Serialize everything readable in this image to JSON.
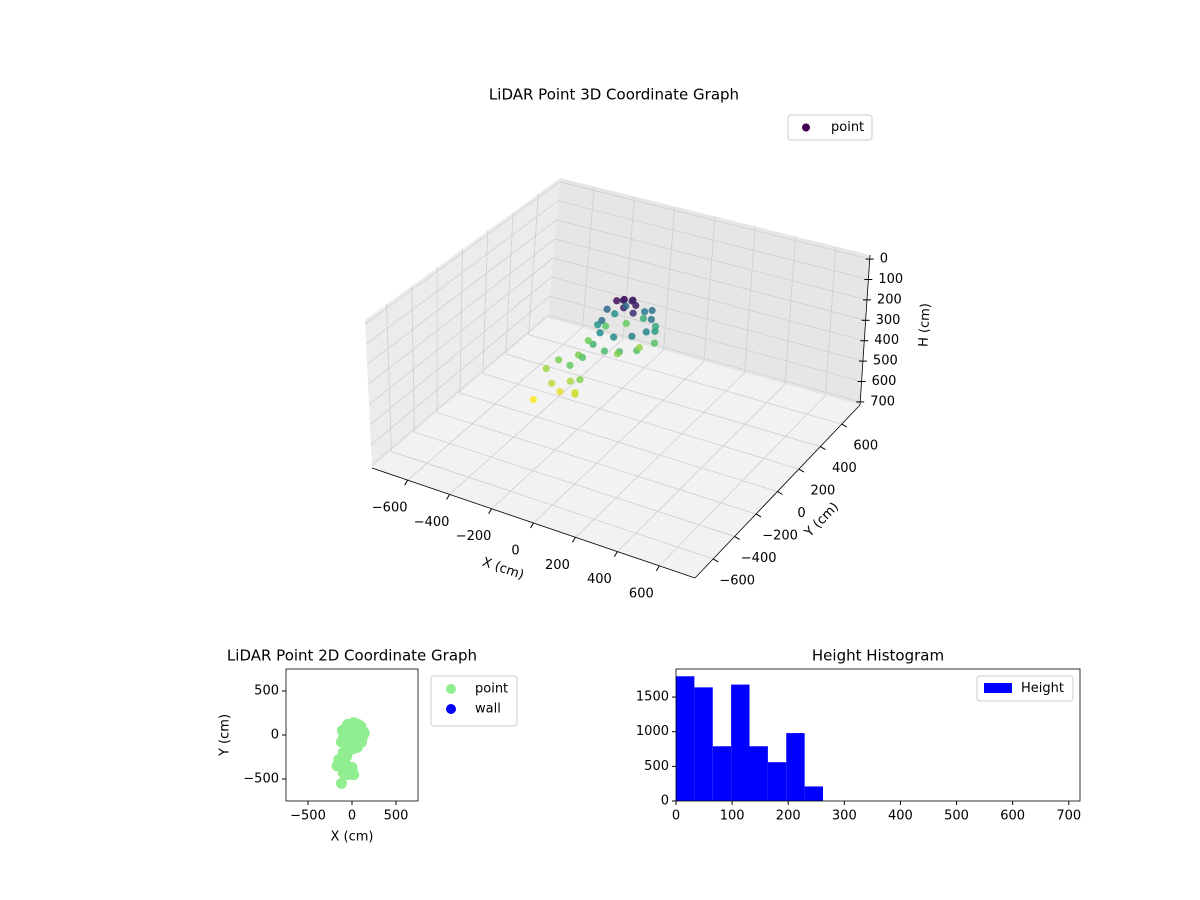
{
  "chart_data": [
    {
      "type": "scatter3d",
      "title": "LiDAR Point 3D Coordinate Graph",
      "xlabel": "X (cm)",
      "ylabel": "Y (cm)",
      "zlabel": "H (cm)",
      "colormap": "viridis",
      "legend": "upper right",
      "series": [
        {
          "name": "point",
          "x": [
            0,
            30,
            -30,
            20,
            50,
            -20,
            10,
            60,
            -90,
            -70,
            -40,
            40,
            100,
            120,
            90,
            20,
            -50,
            -100,
            130,
            70,
            -80,
            -60,
            0,
            60,
            110,
            140,
            100,
            20,
            -50,
            -110,
            -120,
            -100,
            -60,
            30,
            80,
            -150,
            -170,
            -80,
            0,
            -100,
            -50,
            20,
            -120,
            -40,
            10
          ],
          "y": [
            0,
            20,
            -10,
            -40,
            10,
            30,
            50,
            -30,
            20,
            -60,
            90,
            110,
            60,
            -20,
            -90,
            -120,
            -110,
            -40,
            40,
            120,
            70,
            -150,
            -160,
            -140,
            -80,
            20,
            100,
            140,
            120,
            50,
            -80,
            -200,
            -240,
            -100,
            0,
            -280,
            -350,
            -310,
            -370,
            -430,
            -450,
            -450,
            -550,
            -380,
            -430
          ],
          "z": [
            5,
            10,
            15,
            20,
            25,
            30,
            35,
            40,
            90,
            100,
            95,
            110,
            105,
            120,
            115,
            125,
            130,
            140,
            145,
            100,
            135,
            170,
            180,
            175,
            185,
            190,
            160,
            165,
            200,
            195,
            205,
            210,
            190,
            215,
            220,
            210,
            225,
            200,
            215,
            235,
            250,
            240,
            262,
            230,
            245
          ]
        }
      ],
      "xlim": [
        -770,
        770
      ],
      "ylim": [
        -770,
        770
      ],
      "zlim": [
        715,
        -20
      ],
      "xticks": [
        {
          "value": -600,
          "label": "−600"
        },
        {
          "value": -400,
          "label": "−400"
        },
        {
          "value": -200,
          "label": "−200"
        },
        0,
        200,
        400,
        600
      ],
      "yticks": [
        {
          "value": -600,
          "label": "−600"
        },
        {
          "value": -400,
          "label": "−400"
        },
        {
          "value": -200,
          "label": "−200"
        },
        0,
        200,
        400,
        600
      ],
      "zticks": [
        0,
        100,
        200,
        300,
        400,
        500,
        600,
        700
      ],
      "grid": true
    },
    {
      "type": "scatter",
      "title": "LiDAR Point 2D Coordinate Graph",
      "xlabel": "X (cm)",
      "ylabel": "Y (cm)",
      "legend": "outside right",
      "series": [
        {
          "name": "point",
          "color": "#90ee90",
          "x": [
            0,
            30,
            -30,
            20,
            50,
            -20,
            10,
            60,
            -90,
            -70,
            -40,
            40,
            100,
            120,
            90,
            20,
            -50,
            -100,
            130,
            70,
            -80,
            -60,
            0,
            60,
            110,
            140,
            100,
            20,
            -50,
            -110,
            -120,
            -100,
            -60,
            30,
            80,
            -150,
            -170,
            -80,
            0,
            -100,
            -50,
            20,
            -120,
            -40,
            10
          ],
          "y": [
            0,
            20,
            -10,
            -40,
            10,
            30,
            50,
            -30,
            20,
            -60,
            90,
            110,
            60,
            -20,
            -90,
            -120,
            -110,
            -40,
            40,
            120,
            70,
            -150,
            -160,
            -140,
            -80,
            20,
            100,
            140,
            120,
            50,
            -80,
            -200,
            -240,
            -100,
            0,
            -280,
            -350,
            -310,
            -370,
            -430,
            -450,
            -450,
            -550,
            -380,
            -430
          ]
        },
        {
          "name": "wall",
          "color": "#0000ff",
          "x": [],
          "y": []
        }
      ],
      "xlim": [
        -750,
        750
      ],
      "ylim": [
        -750,
        750
      ],
      "xticks": [
        {
          "value": -500,
          "label": "−500"
        },
        0,
        500
      ],
      "yticks": [
        {
          "value": -500,
          "label": "−500"
        },
        0,
        500
      ]
    },
    {
      "type": "histogram",
      "title": "Height Histogram",
      "legend": "upper right",
      "series": [
        {
          "name": "Height",
          "color": "#0000ff",
          "bins": [
            0,
            32.75,
            65.5,
            98.25,
            131,
            163.75,
            196.5,
            229.25,
            262
          ],
          "values": [
            1800,
            1640,
            790,
            1680,
            790,
            560,
            980,
            210
          ]
        }
      ],
      "xlim": [
        0,
        720
      ],
      "ylim": [
        0,
        1905
      ],
      "xticks": [
        0,
        100,
        200,
        300,
        400,
        500,
        600,
        700
      ],
      "yticks": [
        0,
        500,
        1000,
        1500
      ]
    }
  ]
}
